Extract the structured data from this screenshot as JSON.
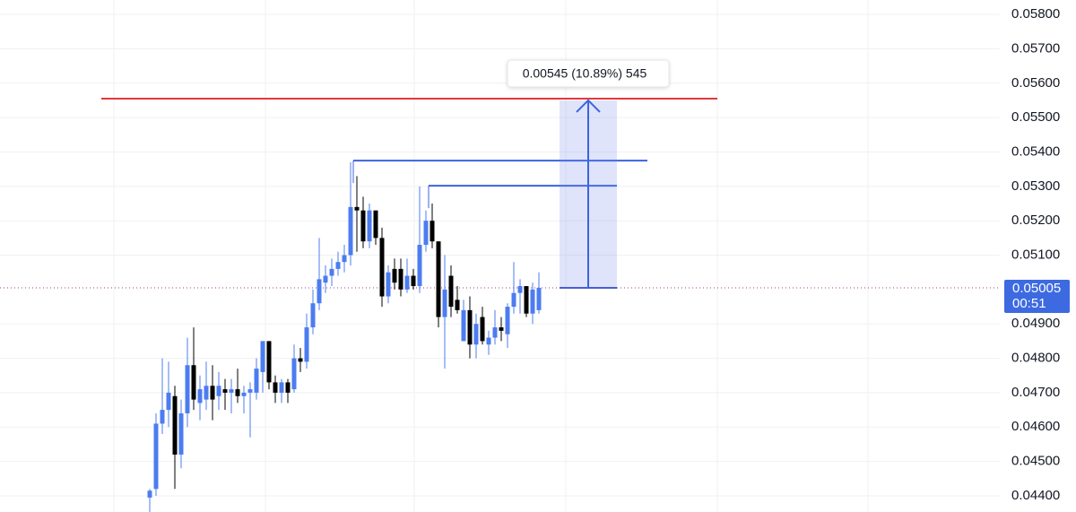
{
  "chart_data": {
    "type": "candlestick",
    "ylim": [
      0.04353,
      0.05842
    ],
    "yticks": [
      {
        "value": 0.058,
        "label": "0.05800"
      },
      {
        "value": 0.057,
        "label": "0.05700"
      },
      {
        "value": 0.056,
        "label": "0.05600"
      },
      {
        "value": 0.055,
        "label": "0.05500"
      },
      {
        "value": 0.054,
        "label": "0.05400"
      },
      {
        "value": 0.053,
        "label": "0.05300"
      },
      {
        "value": 0.052,
        "label": "0.05200"
      },
      {
        "value": 0.051,
        "label": "0.05100"
      },
      {
        "value": 0.049,
        "label": "0.04900"
      },
      {
        "value": 0.048,
        "label": "0.04800"
      },
      {
        "value": 0.047,
        "label": "0.04700"
      },
      {
        "value": 0.046,
        "label": "0.04600"
      },
      {
        "value": 0.045,
        "label": "0.04500"
      },
      {
        "value": 0.044,
        "label": "0.04400"
      }
    ],
    "grid": true,
    "up_color": "#4c7cf0",
    "down_color": "#000000",
    "ohlc": [
      [
        0.04395,
        0.0442,
        0.04353,
        0.04415
      ],
      [
        0.0442,
        0.0464,
        0.044,
        0.0461
      ],
      [
        0.0461,
        0.048,
        0.0458,
        0.0465
      ],
      [
        0.0465,
        0.0479,
        0.046,
        0.047
      ],
      [
        0.0469,
        0.0472,
        0.0442,
        0.0452
      ],
      [
        0.0452,
        0.0468,
        0.0448,
        0.0464
      ],
      [
        0.0464,
        0.0486,
        0.046,
        0.0478
      ],
      [
        0.0478,
        0.0489,
        0.0465,
        0.0468
      ],
      [
        0.0467,
        0.0475,
        0.0462,
        0.0471
      ],
      [
        0.0468,
        0.0479,
        0.0465,
        0.0472
      ],
      [
        0.0472,
        0.0478,
        0.0462,
        0.0468
      ],
      [
        0.0469,
        0.0476,
        0.0465,
        0.0472
      ],
      [
        0.0471,
        0.0474,
        0.0465,
        0.047
      ],
      [
        0.047,
        0.0474,
        0.0464,
        0.0471
      ],
      [
        0.0471,
        0.0477,
        0.0467,
        0.0469
      ],
      [
        0.0469,
        0.0472,
        0.0464,
        0.047
      ],
      [
        0.047,
        0.0473,
        0.0457,
        0.0471
      ],
      [
        0.047,
        0.048,
        0.0468,
        0.0477
      ],
      [
        0.0476,
        0.0485,
        0.047,
        0.0485
      ],
      [
        0.0485,
        0.0485,
        0.0471,
        0.0473
      ],
      [
        0.0473,
        0.0475,
        0.0467,
        0.047
      ],
      [
        0.047,
        0.0474,
        0.0467,
        0.0473
      ],
      [
        0.0473,
        0.0474,
        0.0467,
        0.047
      ],
      [
        0.0471,
        0.0484,
        0.047,
        0.048
      ],
      [
        0.048,
        0.0483,
        0.0476,
        0.0479
      ],
      [
        0.0479,
        0.0493,
        0.0477,
        0.0489
      ],
      [
        0.0489,
        0.05,
        0.0487,
        0.0496
      ],
      [
        0.0496,
        0.0515,
        0.0494,
        0.0503
      ],
      [
        0.0502,
        0.0507,
        0.0499,
        0.0504
      ],
      [
        0.0504,
        0.0509,
        0.0501,
        0.0506
      ],
      [
        0.0506,
        0.0511,
        0.0504,
        0.0508
      ],
      [
        0.0508,
        0.0513,
        0.0505,
        0.051
      ],
      [
        0.051,
        0.0537,
        0.0507,
        0.0524
      ],
      [
        0.0524,
        0.0533,
        0.0511,
        0.0523
      ],
      [
        0.0523,
        0.0527,
        0.0512,
        0.0514
      ],
      [
        0.0514,
        0.0525,
        0.0512,
        0.0523
      ],
      [
        0.0523,
        0.0523,
        0.0513,
        0.0515
      ],
      [
        0.0515,
        0.0518,
        0.0495,
        0.0498
      ],
      [
        0.0498,
        0.0507,
        0.0496,
        0.0505
      ],
      [
        0.0506,
        0.0509,
        0.05,
        0.0502
      ],
      [
        0.0506,
        0.0509,
        0.0498,
        0.05
      ],
      [
        0.05,
        0.0509,
        0.0499,
        0.0504
      ],
      [
        0.0504,
        0.0506,
        0.05,
        0.0501
      ],
      [
        0.0501,
        0.053,
        0.0499,
        0.0513
      ],
      [
        0.0513,
        0.0523,
        0.0511,
        0.052
      ],
      [
        0.052,
        0.0525,
        0.0512,
        0.0514
      ],
      [
        0.0514,
        0.0514,
        0.0489,
        0.0492
      ],
      [
        0.0492,
        0.051,
        0.0477,
        0.05
      ],
      [
        0.0504,
        0.0507,
        0.0492,
        0.0495
      ],
      [
        0.0497,
        0.0501,
        0.0493,
        0.0494
      ],
      [
        0.0485,
        0.0497,
        0.0485,
        0.0494
      ],
      [
        0.0494,
        0.0498,
        0.048,
        0.0484
      ],
      [
        0.0484,
        0.0493,
        0.048,
        0.049
      ],
      [
        0.0492,
        0.0495,
        0.0484,
        0.0485
      ],
      [
        0.0484,
        0.0488,
        0.0481,
        0.0486
      ],
      [
        0.0486,
        0.0494,
        0.0484,
        0.0489
      ],
      [
        0.0489,
        0.0492,
        0.0485,
        0.0488
      ],
      [
        0.0487,
        0.0496,
        0.0483,
        0.0495
      ],
      [
        0.0495,
        0.0508,
        0.0493,
        0.0499
      ],
      [
        0.0499,
        0.0503,
        0.0493,
        0.0501
      ],
      [
        0.0501,
        0.0501,
        0.0492,
        0.0493
      ],
      [
        0.0493,
        0.0502,
        0.049,
        0.05
      ],
      [
        0.0494,
        0.0505,
        0.0493,
        0.05005
      ]
    ],
    "levels": [
      {
        "value": 0.05555,
        "color": "#e0383e"
      },
      {
        "value": 0.05375,
        "color": "#3d63dd"
      },
      {
        "value": 0.05302,
        "color": "#3d63dd"
      }
    ],
    "measure": {
      "from": 0.05005,
      "to": 0.0555,
      "label": "0.00545 (10.89%) 545"
    },
    "last_price": {
      "value": 0.05005,
      "label": "0.05005"
    },
    "countdown": "00:51"
  }
}
